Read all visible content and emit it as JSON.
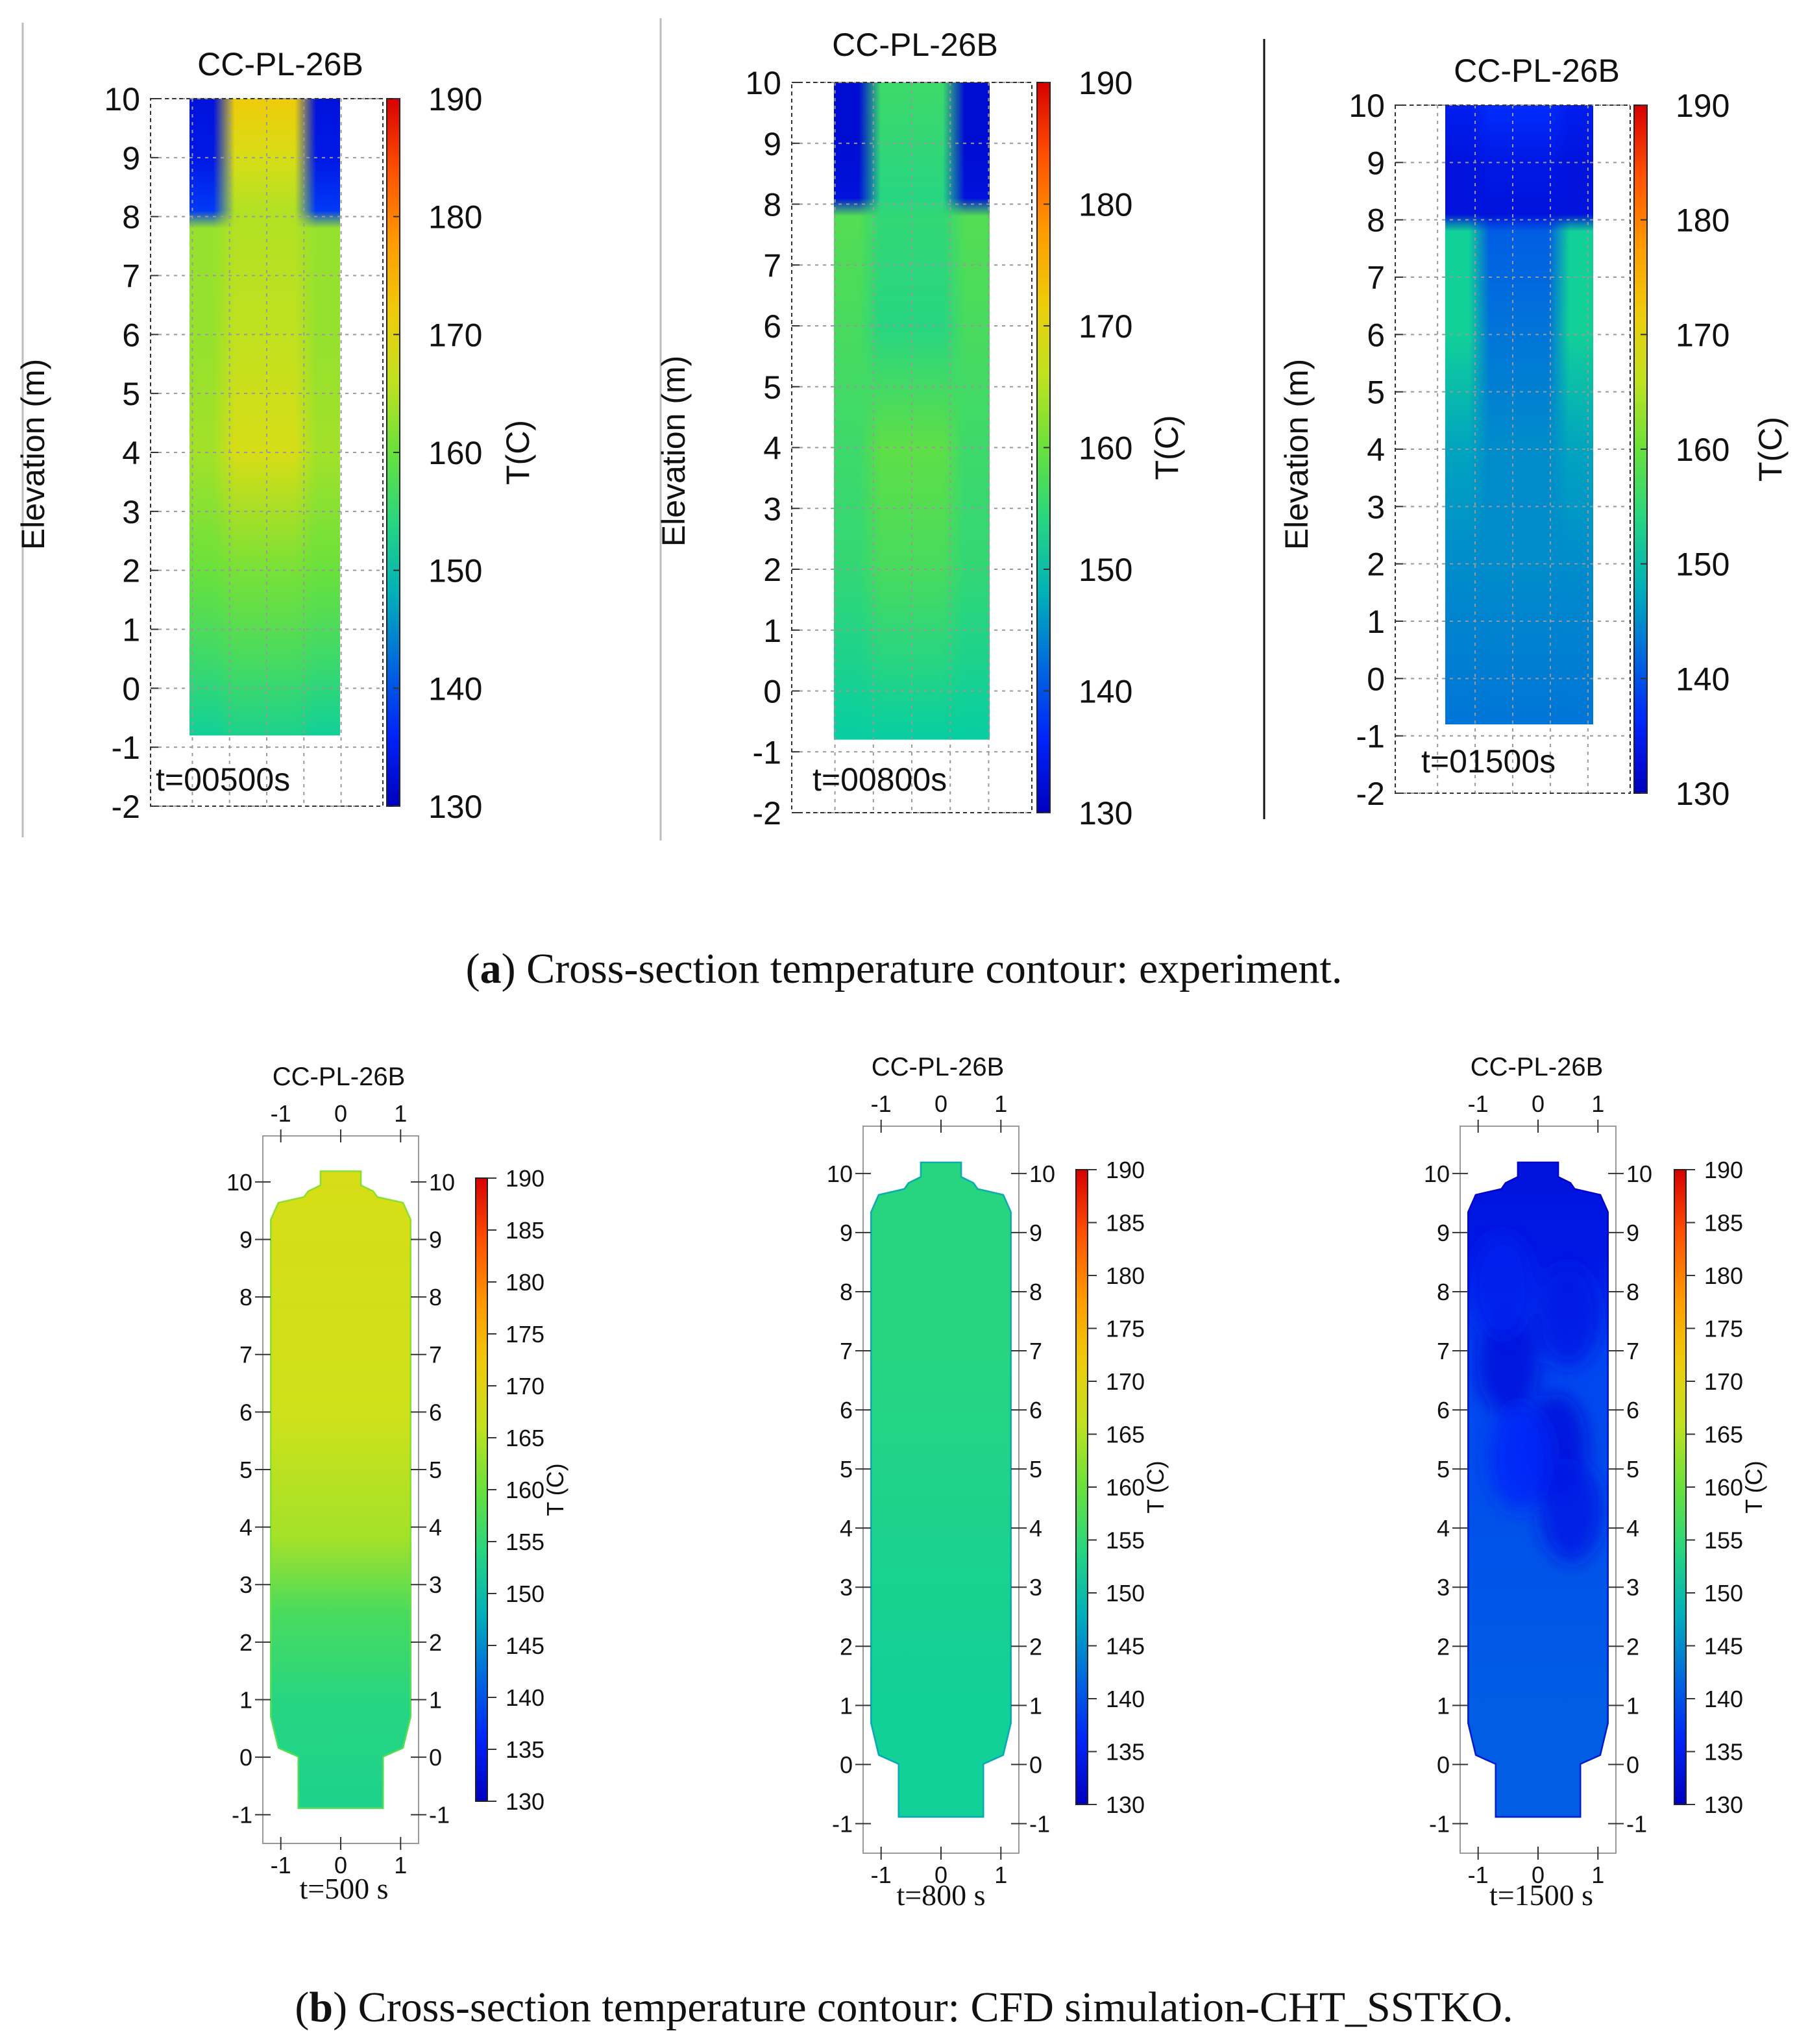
{
  "captions": {
    "a_letter": "a",
    "a_text": "Cross-section temperature contour: experiment.",
    "b_letter": "b",
    "b_text": "Cross-section temperature contour: CFD simulation-CHT_SSTKO."
  },
  "chart_data": [
    {
      "type": "heatmap",
      "group": "experiment",
      "title": "CC-PL-26B",
      "time_label": "t=00500s",
      "ylabel": "Elevation (m)",
      "yticks": [
        "10",
        "9",
        "8",
        "7",
        "6",
        "5",
        "4",
        "3",
        "2",
        "1",
        "0",
        "-1",
        "-2"
      ],
      "ylim": [
        -2,
        10
      ],
      "colorbar_label": "T(C)",
      "colorbar_ticks": [
        "190",
        "180",
        "170",
        "160",
        "150",
        "140",
        "130"
      ],
      "clim": [
        130,
        190
      ],
      "field_range": [
        -0.8,
        10
      ],
      "bands": [
        {
          "z": 10,
          "center": 172,
          "edge": 133
        },
        {
          "z": 9,
          "center": 168,
          "edge": 134
        },
        {
          "z": 8.1,
          "center": 165,
          "edge": 138
        },
        {
          "z": 7.8,
          "center": 165,
          "edge": 163
        },
        {
          "z": 6,
          "center": 166,
          "edge": 163
        },
        {
          "z": 4,
          "center": 168,
          "edge": 164
        },
        {
          "z": 2,
          "center": 161,
          "edge": 160
        },
        {
          "z": 0.5,
          "center": 157,
          "edge": 156
        },
        {
          "z": -0.8,
          "center": 153,
          "edge": 152
        }
      ]
    },
    {
      "type": "heatmap",
      "group": "experiment",
      "title": "CC-PL-26B",
      "time_label": "t=00800s",
      "ylabel": "Elevation (m)",
      "yticks": [
        "10",
        "9",
        "8",
        "7",
        "6",
        "5",
        "4",
        "3",
        "2",
        "1",
        "0",
        "-1",
        "-2"
      ],
      "ylim": [
        -2,
        10
      ],
      "colorbar_label": "T(C)",
      "colorbar_ticks": [
        "190",
        "180",
        "170",
        "160",
        "150",
        "140",
        "130"
      ],
      "clim": [
        130,
        190
      ],
      "field_range": [
        -0.8,
        10
      ],
      "bands": [
        {
          "z": 10,
          "center": 156,
          "edge": 132
        },
        {
          "z": 9,
          "center": 155,
          "edge": 132
        },
        {
          "z": 8.1,
          "center": 154,
          "edge": 133
        },
        {
          "z": 7.8,
          "center": 155,
          "edge": 158
        },
        {
          "z": 6,
          "center": 154,
          "edge": 157
        },
        {
          "z": 4,
          "center": 159,
          "edge": 156
        },
        {
          "z": 2,
          "center": 157,
          "edge": 155
        },
        {
          "z": 0.5,
          "center": 154,
          "edge": 153
        },
        {
          "z": -0.8,
          "center": 151,
          "edge": 151
        }
      ]
    },
    {
      "type": "heatmap",
      "group": "experiment",
      "title": "CC-PL-26B",
      "time_label": "t=01500s",
      "ylabel": "Elevation (m)",
      "yticks": [
        "10",
        "9",
        "8",
        "7",
        "6",
        "5",
        "4",
        "3",
        "2",
        "1",
        "0",
        "-1",
        "-2"
      ],
      "ylim": [
        -2,
        10
      ],
      "colorbar_label": "T(C)",
      "colorbar_ticks": [
        "190",
        "180",
        "170",
        "160",
        "150",
        "140",
        "130"
      ],
      "clim": [
        130,
        190
      ],
      "field_range": [
        -0.8,
        10
      ],
      "bands": [
        {
          "z": 10,
          "center": 137,
          "edge": 135
        },
        {
          "z": 9,
          "center": 134,
          "edge": 133
        },
        {
          "z": 8.1,
          "center": 133,
          "edge": 133
        },
        {
          "z": 7.8,
          "center": 141,
          "edge": 152
        },
        {
          "z": 6,
          "center": 143,
          "edge": 152
        },
        {
          "z": 4,
          "center": 145,
          "edge": 147
        },
        {
          "z": 2,
          "center": 145,
          "edge": 145
        },
        {
          "z": 0.5,
          "center": 144,
          "edge": 144
        },
        {
          "z": -0.8,
          "center": 143,
          "edge": 143
        }
      ]
    },
    {
      "type": "heatmap",
      "group": "simulation",
      "title": "CC-PL-26B",
      "time_label": "t=500 s",
      "xticks": [
        "-1",
        "0",
        "1"
      ],
      "xlim": [
        -1.3,
        1.3
      ],
      "yticks": [
        "10",
        "9",
        "8",
        "7",
        "6",
        "5",
        "4",
        "3",
        "2",
        "1",
        "0",
        "-1"
      ],
      "ylim": [
        -1.5,
        10.8
      ],
      "colorbar_label": "T (C)",
      "colorbar_ticks": [
        "190",
        "185",
        "180",
        "175",
        "170",
        "165",
        "160",
        "155",
        "150",
        "145",
        "140",
        "135",
        "130"
      ],
      "clim": [
        130,
        190
      ],
      "bands": [
        {
          "z": 10.2,
          "t": 168
        },
        {
          "z": 6,
          "t": 167
        },
        {
          "z": 3.8,
          "t": 164
        },
        {
          "z": 2.5,
          "t": 157
        },
        {
          "z": 1,
          "t": 154
        },
        {
          "z": -0.9,
          "t": 153
        }
      ],
      "blobs": []
    },
    {
      "type": "heatmap",
      "group": "simulation",
      "title": "CC-PL-26B",
      "time_label": "t=800 s",
      "xticks": [
        "-1",
        "0",
        "1"
      ],
      "xlim": [
        -1.3,
        1.3
      ],
      "yticks": [
        "10",
        "9",
        "8",
        "7",
        "6",
        "5",
        "4",
        "3",
        "2",
        "1",
        "0",
        "-1"
      ],
      "ylim": [
        -1.5,
        10.8
      ],
      "colorbar_label": "T (C)",
      "colorbar_ticks": [
        "190",
        "185",
        "180",
        "175",
        "170",
        "165",
        "160",
        "155",
        "150",
        "145",
        "140",
        "135",
        "130"
      ],
      "clim": [
        130,
        190
      ],
      "bands": [
        {
          "z": 10.2,
          "t": 154
        },
        {
          "z": 7,
          "t": 154
        },
        {
          "z": 4,
          "t": 153
        },
        {
          "z": 1,
          "t": 152
        },
        {
          "z": -0.9,
          "t": 152
        }
      ],
      "blobs": []
    },
    {
      "type": "heatmap",
      "group": "simulation",
      "title": "CC-PL-26B",
      "time_label": "t=1500 s",
      "xticks": [
        "-1",
        "0",
        "1"
      ],
      "xlim": [
        -1.3,
        1.3
      ],
      "yticks": [
        "10",
        "9",
        "8",
        "7",
        "6",
        "5",
        "4",
        "3",
        "2",
        "1",
        "0",
        "-1"
      ],
      "ylim": [
        -1.5,
        10.8
      ],
      "colorbar_label": "T (C)",
      "colorbar_ticks": [
        "190",
        "185",
        "180",
        "175",
        "170",
        "165",
        "160",
        "155",
        "150",
        "145",
        "140",
        "135",
        "130"
      ],
      "clim": [
        130,
        190
      ],
      "bands": [
        {
          "z": 10.2,
          "t": 133
        },
        {
          "z": 8.5,
          "t": 134
        },
        {
          "z": 7,
          "t": 139
        },
        {
          "z": 4,
          "t": 140
        },
        {
          "z": 1,
          "t": 141
        },
        {
          "z": -0.9,
          "t": 141
        }
      ],
      "blobs": [
        {
          "x": -0.5,
          "z": 6.8,
          "t": 133
        },
        {
          "x": 0.3,
          "z": 5.4,
          "t": 133
        },
        {
          "x": -0.3,
          "z": 5.2,
          "t": 136
        },
        {
          "x": 0.55,
          "z": 4.3,
          "t": 134
        },
        {
          "x": -0.6,
          "z": 8.1,
          "t": 135
        },
        {
          "x": 0.5,
          "z": 7.6,
          "t": 134
        }
      ]
    }
  ]
}
